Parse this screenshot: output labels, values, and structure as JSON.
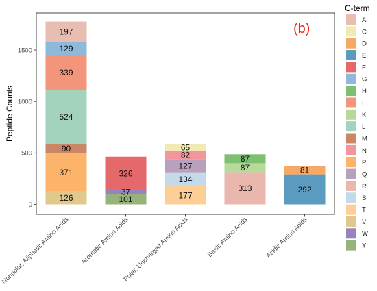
{
  "chart_data": {
    "type": "bar",
    "stacked": true,
    "panel_tag": "(b)",
    "xlabel": "",
    "ylabel": "Peptide Counts",
    "ylim": [
      0,
      1800
    ],
    "yticks": [
      0,
      500,
      1000,
      1500
    ],
    "grid": false,
    "categories": [
      "Nonpolar, Aliphatic Amino Acids",
      "Aromatic Amino Acids",
      "Polar, Uncharged Amino Acids",
      "Basic Amino Acids",
      "Acidic Amino Acids"
    ],
    "legend": {
      "title": "C-term",
      "placement": "right",
      "entries": [
        "A",
        "C",
        "D",
        "E",
        "F",
        "G",
        "H",
        "I",
        "K",
        "L",
        "M",
        "N",
        "P",
        "Q",
        "R",
        "S",
        "T",
        "V",
        "W",
        "Y"
      ]
    },
    "colors": {
      "A": "#e8bdb2",
      "C": "#f1eab5",
      "D": "#f5a965",
      "E": "#5b9bc0",
      "F": "#e5686a",
      "G": "#8fb9da",
      "H": "#7fbf72",
      "I": "#f2957b",
      "K": "#b5da9c",
      "L": "#a3d3bd",
      "M": "#c98765",
      "N": "#f2959d",
      "P": "#fbb469",
      "Q": "#b8a1bc",
      "R": "#e9b7ad",
      "S": "#c2daea",
      "T": "#fdcf97",
      "V": "#e1c98c",
      "W": "#9983bd",
      "Y": "#95b37b"
    },
    "stacks": [
      {
        "category": "Nonpolar, Aliphatic Amino Acids",
        "segments": [
          {
            "residue": "V",
            "value": 126
          },
          {
            "residue": "P",
            "value": 371
          },
          {
            "residue": "M",
            "value": 90
          },
          {
            "residue": "L",
            "value": 524
          },
          {
            "residue": "I",
            "value": 339
          },
          {
            "residue": "G",
            "value": 129
          },
          {
            "residue": "A",
            "value": 197
          }
        ]
      },
      {
        "category": "Aromatic Amino Acids",
        "segments": [
          {
            "residue": "Y",
            "value": 101
          },
          {
            "residue": "W",
            "value": 37
          },
          {
            "residue": "F",
            "value": 326
          }
        ]
      },
      {
        "category": "Polar, Uncharged Amino Acids",
        "segments": [
          {
            "residue": "T",
            "value": 177
          },
          {
            "residue": "S",
            "value": 134
          },
          {
            "residue": "Q",
            "value": 127
          },
          {
            "residue": "N",
            "value": 82
          },
          {
            "residue": "C",
            "value": 65
          }
        ]
      },
      {
        "category": "Basic Amino Acids",
        "segments": [
          {
            "residue": "R",
            "value": 313
          },
          {
            "residue": "K",
            "value": 87
          },
          {
            "residue": "H",
            "value": 87
          }
        ]
      },
      {
        "category": "Acidic Amino Acids",
        "segments": [
          {
            "residue": "E",
            "value": 292
          },
          {
            "residue": "D",
            "value": 81
          }
        ]
      }
    ]
  }
}
